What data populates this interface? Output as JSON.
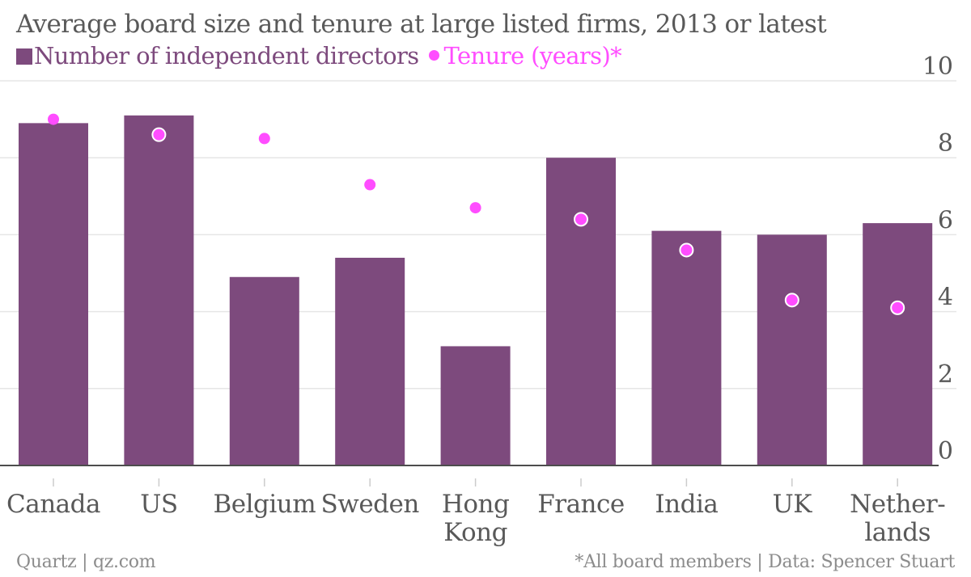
{
  "chart_data": {
    "type": "bar",
    "title": "Average board size and tenure at large listed firms, 2013 or latest",
    "categories": [
      "Canada",
      "US",
      "Belgium",
      "Sweden",
      "Hong Kong",
      "France",
      "India",
      "UK",
      "Netherlands"
    ],
    "category_lines": [
      [
        "Canada"
      ],
      [
        "US"
      ],
      [
        "Belgium"
      ],
      [
        "Sweden"
      ],
      [
        "Hong",
        "Kong"
      ],
      [
        "France"
      ],
      [
        "India"
      ],
      [
        "UK"
      ],
      [
        "Nether-",
        "lands"
      ]
    ],
    "series": [
      {
        "name": "Number of independent directors",
        "kind": "bar",
        "color": "#7d4a7d",
        "values": [
          8.9,
          9.1,
          4.9,
          5.4,
          3.1,
          8.0,
          6.1,
          6.0,
          6.3
        ]
      },
      {
        "name": "Tenure (years)*",
        "kind": "dot",
        "color": "#ff4dff",
        "values": [
          9.0,
          8.6,
          8.5,
          7.3,
          6.7,
          6.4,
          5.6,
          4.3,
          4.1
        ]
      }
    ],
    "ylim": [
      0,
      10
    ],
    "yticks": [
      0,
      2,
      4,
      6,
      8,
      10
    ],
    "y_axis_side": "right",
    "grid": true,
    "legend_placement": "top-left"
  },
  "footer": {
    "source_left": "Quartz | qz.com",
    "source_right": "*All board members | Data: Spencer Stuart"
  },
  "colors": {
    "bar": "#7d4a7d",
    "dot": "#ff4dff",
    "grid": "#e6e6e6",
    "axis": "#4d4d4d",
    "tick_text": "#595959"
  }
}
